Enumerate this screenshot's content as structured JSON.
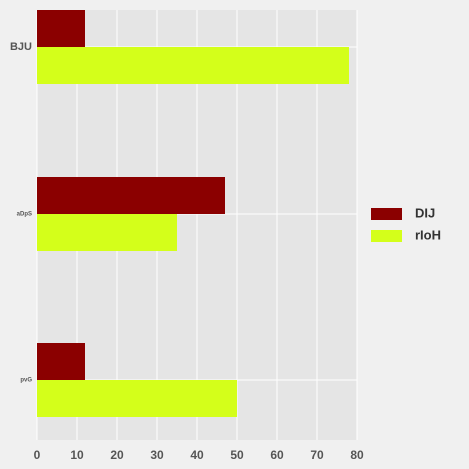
{
  "chart_data": {
    "type": "bar",
    "orientation": "horizontal",
    "categories": [
      "BJU",
      "aDpS",
      "pvG"
    ],
    "series": [
      {
        "name": "DIJ",
        "color": "#8b0000",
        "values": [
          12,
          47,
          12
        ]
      },
      {
        "name": "rIoH",
        "color": "#d4ff1a",
        "values": [
          78,
          35,
          50
        ]
      }
    ],
    "xlim": [
      0,
      80
    ],
    "xticks": [
      0,
      10,
      20,
      30,
      40,
      50,
      60,
      70,
      80
    ],
    "title": "",
    "xlabel": "",
    "ylabel": "",
    "grid": true,
    "legend_position": "right"
  }
}
